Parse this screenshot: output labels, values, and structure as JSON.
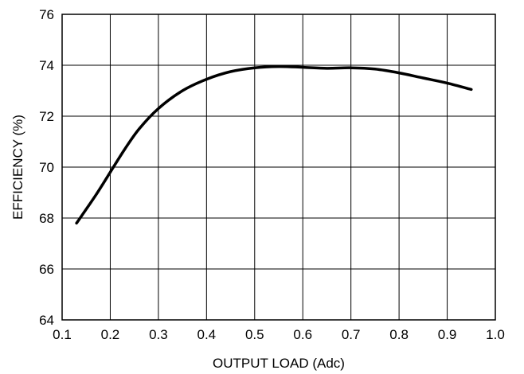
{
  "chart_data": {
    "type": "line",
    "title": "",
    "xlabel": "OUTPUT LOAD (Adc)",
    "ylabel": "EFFICIENCY (%)",
    "xlim": [
      0.1,
      1.0
    ],
    "ylim": [
      64,
      76
    ],
    "x_ticks": [
      "0.1",
      "0.2",
      "0.3",
      "0.4",
      "0.5",
      "0.6",
      "0.7",
      "0.8",
      "0.9",
      "1.0"
    ],
    "y_ticks": [
      "64",
      "66",
      "68",
      "70",
      "72",
      "74",
      "76"
    ],
    "grid": true,
    "legend": "none",
    "series": [
      {
        "x": [
          0.13,
          0.17,
          0.2,
          0.23,
          0.26,
          0.3,
          0.35,
          0.4,
          0.45,
          0.5,
          0.55,
          0.6,
          0.65,
          0.7,
          0.75,
          0.8,
          0.85,
          0.9,
          0.95
        ],
        "y": [
          67.8,
          68.9,
          69.8,
          70.7,
          71.5,
          72.3,
          73.0,
          73.45,
          73.75,
          73.9,
          73.95,
          73.92,
          73.88,
          73.9,
          73.85,
          73.7,
          73.5,
          73.3,
          73.05
        ]
      }
    ]
  }
}
